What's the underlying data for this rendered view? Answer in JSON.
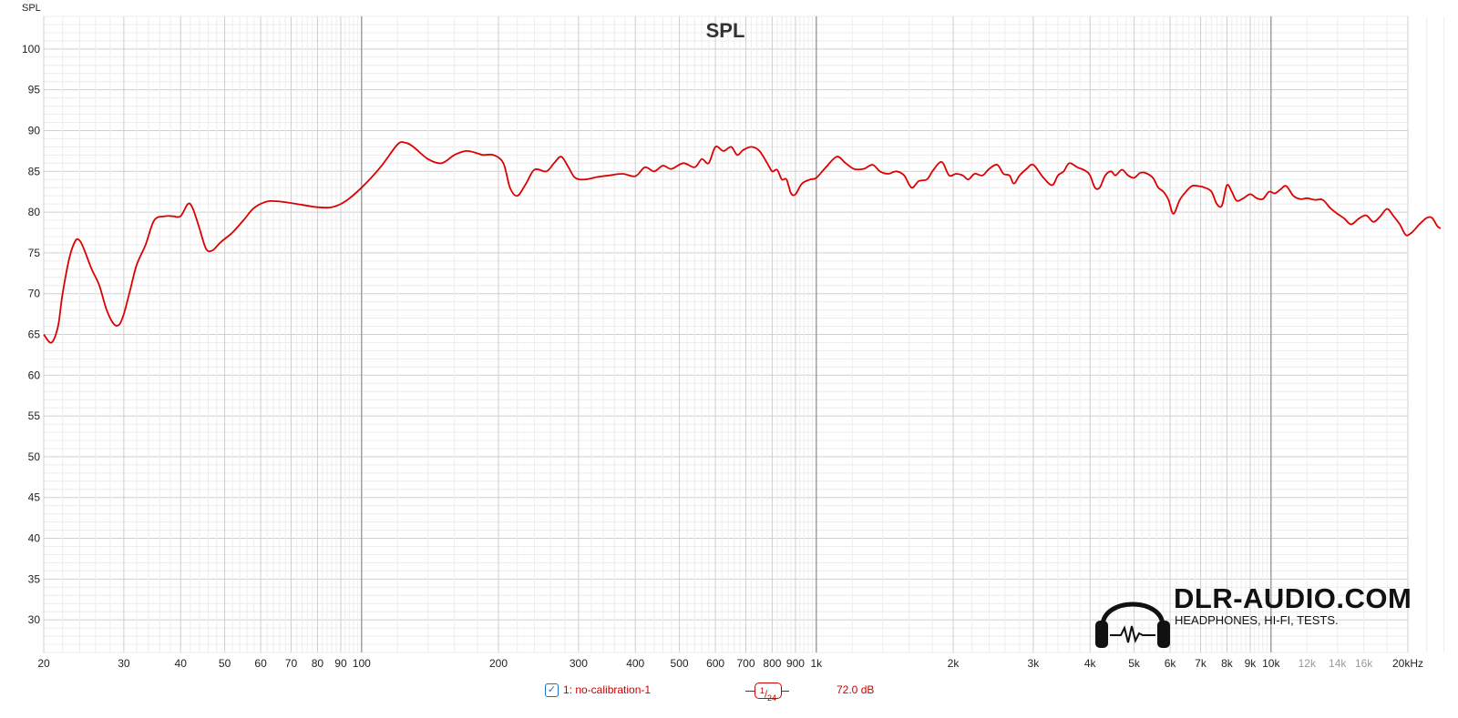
{
  "chart_data": {
    "type": "line",
    "title": "SPL",
    "ylabel": "SPL",
    "xscale": "log",
    "xlim": [
      20,
      20000
    ],
    "ylim": [
      26,
      104
    ],
    "y_ticks": [
      30,
      35,
      40,
      45,
      50,
      55,
      60,
      65,
      70,
      75,
      80,
      85,
      90,
      95,
      100
    ],
    "x_ticks": [
      {
        "v": 20,
        "label": "20"
      },
      {
        "v": 30,
        "label": "30"
      },
      {
        "v": 40,
        "label": "40"
      },
      {
        "v": 50,
        "label": "50"
      },
      {
        "v": 60,
        "label": "60"
      },
      {
        "v": 70,
        "label": "70"
      },
      {
        "v": 80,
        "label": "80"
      },
      {
        "v": 90,
        "label": "90"
      },
      {
        "v": 100,
        "label": "100"
      },
      {
        "v": 200,
        "label": "200"
      },
      {
        "v": 300,
        "label": "300"
      },
      {
        "v": 400,
        "label": "400"
      },
      {
        "v": 500,
        "label": "500"
      },
      {
        "v": 600,
        "label": "600"
      },
      {
        "v": 700,
        "label": "700"
      },
      {
        "v": 800,
        "label": "800"
      },
      {
        "v": 900,
        "label": "900"
      },
      {
        "v": 1000,
        "label": "1k"
      },
      {
        "v": 2000,
        "label": "2k"
      },
      {
        "v": 3000,
        "label": "3k"
      },
      {
        "v": 4000,
        "label": "4k"
      },
      {
        "v": 5000,
        "label": "5k"
      },
      {
        "v": 6000,
        "label": "6k"
      },
      {
        "v": 7000,
        "label": "7k"
      },
      {
        "v": 8000,
        "label": "8k"
      },
      {
        "v": 9000,
        "label": "9k"
      },
      {
        "v": 10000,
        "label": "10k"
      },
      {
        "v": 12000,
        "label": "12k",
        "minor": true
      },
      {
        "v": 14000,
        "label": "14k",
        "minor": true
      },
      {
        "v": 16000,
        "label": "16k",
        "minor": true
      },
      {
        "v": 20000,
        "label": "20kHz"
      }
    ],
    "grid": true,
    "series": [
      {
        "name": "1: no-calibration-1",
        "color": "#dd0000",
        "points": [
          [
            20,
            65
          ],
          [
            20.8,
            64
          ],
          [
            21.5,
            66
          ],
          [
            22,
            70
          ],
          [
            22.8,
            74.5
          ],
          [
            23.5,
            76.5
          ],
          [
            24,
            76.5
          ],
          [
            24.5,
            75.5
          ],
          [
            25.5,
            73
          ],
          [
            26.5,
            71
          ],
          [
            27.5,
            68
          ],
          [
            28.5,
            66.3
          ],
          [
            29.3,
            66.2
          ],
          [
            30,
            67.5
          ],
          [
            31,
            70.5
          ],
          [
            32,
            73.5
          ],
          [
            33.5,
            76
          ],
          [
            35,
            79
          ],
          [
            37,
            79.5
          ],
          [
            38.5,
            79.5
          ],
          [
            40,
            79.5
          ],
          [
            41.5,
            81
          ],
          [
            42.5,
            80.5
          ],
          [
            44,
            78
          ],
          [
            45.5,
            75.5
          ],
          [
            47,
            75.3
          ],
          [
            49,
            76.3
          ],
          [
            52,
            77.5
          ],
          [
            55,
            79
          ],
          [
            58,
            80.5
          ],
          [
            62,
            81.3
          ],
          [
            66,
            81.3
          ],
          [
            72,
            81
          ],
          [
            80,
            80.6
          ],
          [
            86,
            80.6
          ],
          [
            92,
            81.3
          ],
          [
            100,
            83
          ],
          [
            110,
            85.5
          ],
          [
            120,
            88.3
          ],
          [
            125,
            88.5
          ],
          [
            130,
            88
          ],
          [
            140,
            86.5
          ],
          [
            150,
            86
          ],
          [
            160,
            87
          ],
          [
            170,
            87.5
          ],
          [
            180,
            87.2
          ],
          [
            185,
            87
          ],
          [
            195,
            87
          ],
          [
            205,
            86
          ],
          [
            212,
            83
          ],
          [
            220,
            82
          ],
          [
            230,
            83.5
          ],
          [
            240,
            85.2
          ],
          [
            255,
            85
          ],
          [
            265,
            86
          ],
          [
            275,
            86.8
          ],
          [
            285,
            85.5
          ],
          [
            295,
            84.2
          ],
          [
            310,
            84
          ],
          [
            330,
            84.3
          ],
          [
            350,
            84.5
          ],
          [
            375,
            84.7
          ],
          [
            400,
            84.4
          ],
          [
            420,
            85.5
          ],
          [
            440,
            85
          ],
          [
            460,
            85.7
          ],
          [
            480,
            85.3
          ],
          [
            510,
            86
          ],
          [
            540,
            85.5
          ],
          [
            560,
            86.5
          ],
          [
            580,
            86
          ],
          [
            600,
            88
          ],
          [
            625,
            87.5
          ],
          [
            650,
            88
          ],
          [
            670,
            87
          ],
          [
            690,
            87.6
          ],
          [
            720,
            88
          ],
          [
            750,
            87.5
          ],
          [
            780,
            86
          ],
          [
            800,
            85
          ],
          [
            820,
            85.2
          ],
          [
            840,
            84
          ],
          [
            860,
            84
          ],
          [
            880,
            82.3
          ],
          [
            900,
            82.2
          ],
          [
            930,
            83.5
          ],
          [
            970,
            84
          ],
          [
            1000,
            84.2
          ],
          [
            1050,
            85.5
          ],
          [
            1110,
            86.8
          ],
          [
            1160,
            86
          ],
          [
            1210,
            85.3
          ],
          [
            1270,
            85.3
          ],
          [
            1330,
            85.8
          ],
          [
            1380,
            85
          ],
          [
            1440,
            84.7
          ],
          [
            1500,
            85
          ],
          [
            1560,
            84.5
          ],
          [
            1620,
            83
          ],
          [
            1680,
            83.8
          ],
          [
            1750,
            84
          ],
          [
            1800,
            85
          ],
          [
            1860,
            86
          ],
          [
            1900,
            86
          ],
          [
            1960,
            84.5
          ],
          [
            2030,
            84.7
          ],
          [
            2100,
            84.5
          ],
          [
            2160,
            84
          ],
          [
            2230,
            84.7
          ],
          [
            2320,
            84.5
          ],
          [
            2400,
            85.3
          ],
          [
            2500,
            85.8
          ],
          [
            2580,
            84.7
          ],
          [
            2660,
            84.5
          ],
          [
            2720,
            83.5
          ],
          [
            2800,
            84.5
          ],
          [
            2900,
            85.3
          ],
          [
            3000,
            85.8
          ],
          [
            3150,
            84.3
          ],
          [
            3300,
            83.3
          ],
          [
            3400,
            84.5
          ],
          [
            3500,
            85
          ],
          [
            3600,
            86
          ],
          [
            3750,
            85.5
          ],
          [
            3900,
            85.1
          ],
          [
            4000,
            84.5
          ],
          [
            4100,
            83
          ],
          [
            4200,
            83
          ],
          [
            4320,
            84.5
          ],
          [
            4450,
            85
          ],
          [
            4550,
            84.5
          ],
          [
            4700,
            85.2
          ],
          [
            4850,
            84.5
          ],
          [
            5000,
            84.2
          ],
          [
            5150,
            84.8
          ],
          [
            5300,
            84.8
          ],
          [
            5500,
            84.2
          ],
          [
            5650,
            83
          ],
          [
            5800,
            82.5
          ],
          [
            5950,
            81.5
          ],
          [
            6100,
            79.8
          ],
          [
            6300,
            81.5
          ],
          [
            6500,
            82.5
          ],
          [
            6700,
            83.2
          ],
          [
            6900,
            83.2
          ],
          [
            7150,
            83
          ],
          [
            7400,
            82.5
          ],
          [
            7600,
            81
          ],
          [
            7800,
            80.8
          ],
          [
            8000,
            83.3
          ],
          [
            8200,
            82.5
          ],
          [
            8400,
            81.4
          ],
          [
            8700,
            81.7
          ],
          [
            9000,
            82.2
          ],
          [
            9300,
            81.7
          ],
          [
            9600,
            81.6
          ],
          [
            9900,
            82.5
          ],
          [
            10200,
            82.3
          ],
          [
            10500,
            82.8
          ],
          [
            10800,
            83.2
          ],
          [
            11200,
            82
          ],
          [
            11600,
            81.6
          ],
          [
            12000,
            81.7
          ],
          [
            12500,
            81.5
          ],
          [
            13000,
            81.5
          ],
          [
            13500,
            80.5
          ],
          [
            14000,
            79.8
          ],
          [
            14500,
            79.2
          ],
          [
            15000,
            78.5
          ],
          [
            15600,
            79.2
          ],
          [
            16200,
            79.6
          ],
          [
            16800,
            78.8
          ],
          [
            17400,
            79.5
          ],
          [
            18000,
            80.4
          ],
          [
            18600,
            79.5
          ],
          [
            19200,
            78.5
          ],
          [
            19800,
            77.2
          ],
          [
            20400,
            77.5
          ],
          [
            21200,
            78.5
          ],
          [
            22000,
            79.3
          ],
          [
            22600,
            79.3
          ],
          [
            23200,
            78.3
          ],
          [
            23600,
            78
          ]
        ]
      }
    ],
    "legend": {
      "series_label": "1: no-calibration-1",
      "smoothing_num": "1",
      "smoothing_den": "24",
      "level": "72.0 dB"
    }
  },
  "logo": {
    "brand": "DLR-AUDIO.COM",
    "tagline": "HEADPHONES, HI-FI, TESTS."
  },
  "legend_checkbox_icon": "checkbox-checked-icon"
}
